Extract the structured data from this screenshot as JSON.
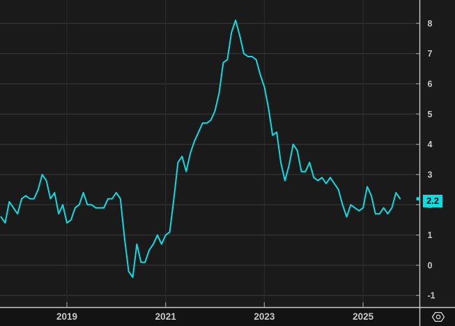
{
  "chart_data": {
    "type": "line",
    "title": "",
    "x_tick_labels": [
      "2019",
      "2021",
      "2023",
      "2025"
    ],
    "x_tick_years": [
      2019,
      2021,
      2023,
      2025
    ],
    "y_tick_labels": [
      "8",
      "7",
      "6",
      "5",
      "4",
      "3",
      "2",
      "1",
      "0",
      "-1"
    ],
    "y_tick_values": [
      8,
      7,
      6,
      5,
      4,
      3,
      2,
      1,
      0,
      -1
    ],
    "ylim": [
      -1.39,
      8.78
    ],
    "xlim_years": [
      2017.65,
      2026.14
    ],
    "grid": true,
    "legend_position": "none",
    "axis_side": "right",
    "series": [
      {
        "name": "series-1",
        "color": "#0bdde4",
        "start_month": "2017-09",
        "end_month": "2025-10",
        "frequency": "monthly",
        "values": [
          1.6,
          1.4,
          2.1,
          1.9,
          1.7,
          2.2,
          2.3,
          2.2,
          2.2,
          2.5,
          3.0,
          2.8,
          2.2,
          2.4,
          1.7,
          2.0,
          1.4,
          1.5,
          1.9,
          2.0,
          2.4,
          2.0,
          2.0,
          1.9,
          1.9,
          1.9,
          2.2,
          2.2,
          2.4,
          2.2,
          0.9,
          -0.2,
          -0.4,
          0.7,
          0.1,
          0.1,
          0.5,
          0.7,
          1.0,
          0.7,
          1.0,
          1.1,
          2.2,
          3.4,
          3.6,
          3.1,
          3.7,
          4.1,
          4.4,
          4.7,
          4.7,
          4.8,
          5.1,
          5.7,
          6.7,
          6.8,
          7.7,
          8.1,
          7.6,
          7.0,
          6.9,
          6.9,
          6.8,
          6.3,
          5.9,
          5.2,
          4.3,
          4.4,
          3.4,
          2.8,
          3.3,
          4.0,
          3.8,
          3.1,
          3.1,
          3.4,
          2.9,
          2.8,
          2.9,
          2.7,
          2.9,
          2.7,
          2.5,
          2.0,
          1.6,
          2.0,
          1.9,
          1.8,
          1.9,
          2.6,
          2.3,
          1.7,
          1.7,
          1.9,
          1.7,
          1.9,
          2.4,
          2.2
        ]
      }
    ],
    "last_value": 2.2,
    "last_value_label": "2.2"
  },
  "colors": {
    "background": "#1a1a1a",
    "bottom_bar": "#131313",
    "grid_horizontal": "#3a3a3a",
    "grid_vertical": "#2d2d2d",
    "axis_line": "#cccccc",
    "tick_mark": "#8c8c8c",
    "label_text": "#c9c9c9",
    "line": "#0bdde4",
    "badge_background": "#0bdde4",
    "badge_text": "#000000",
    "icon": "#d8d8d8"
  },
  "controls": {
    "settings_icon": "hexagon-circle"
  }
}
